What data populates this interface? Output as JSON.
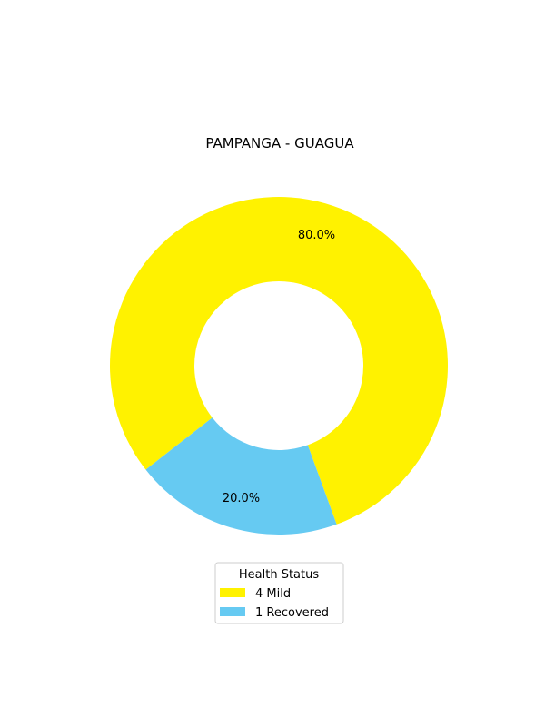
{
  "chart_data": {
    "type": "pie",
    "title": "PAMPANGA - GUAGUA",
    "donut": true,
    "slices": [
      {
        "label": "Mild",
        "count": 4,
        "percent": 80.0,
        "percent_label": "80.0%",
        "legend_label": "4  Mild",
        "color": "#FFF200"
      },
      {
        "label": "Recovered",
        "count": 1,
        "percent": 20.0,
        "percent_label": "20.0%",
        "legend_label": "1  Recovered",
        "color": "#66CAF2"
      }
    ],
    "legend": {
      "title": "Health Status",
      "placement": "bottom-center"
    }
  }
}
